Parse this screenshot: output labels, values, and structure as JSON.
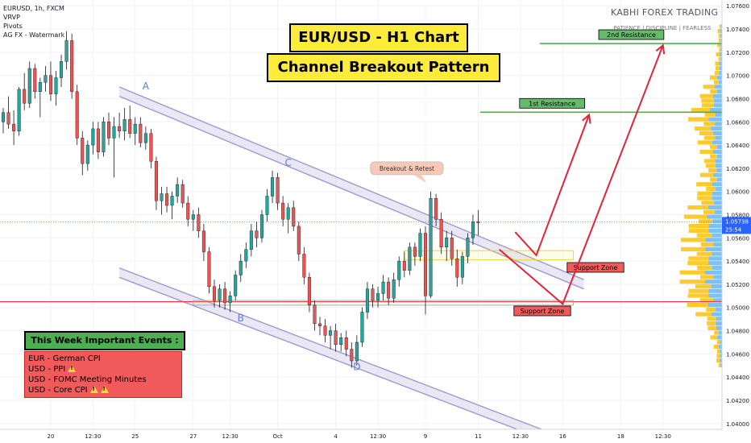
{
  "legend": {
    "symbol": "EURUSD, 1h, FXCM",
    "indicators": [
      "VRVP",
      "Pivots",
      "AG FX - Watermark"
    ]
  },
  "titles": {
    "line1": "EUR/USD - H1 Chart",
    "line2": "Channel Breakout Pattern"
  },
  "brand": {
    "name": "KABHI FOREX TRADING",
    "tagline": "PATIENCE | DISCIPLINE | FEARLESS"
  },
  "events": {
    "title": "This Week Important Events :",
    "items": [
      {
        "text": "EUR - German CPI",
        "warnings": 0
      },
      {
        "text": "USD - PPI",
        "warnings": 1
      },
      {
        "text": "USD - FOMC Meeting Minutes",
        "warnings": 0
      },
      {
        "text": "USD - Core CPI",
        "warnings": 2
      }
    ]
  },
  "colors": {
    "bull": "#26a69a",
    "bear": "#ef5350",
    "candle_wick": "#131722",
    "resistance": "#4caf50",
    "support_line": "#f23645",
    "channel": "#9c8fc9",
    "projection": "#e0243a",
    "support_zone_fill": "#f05a5a",
    "resistance_fill": "#66bb6a",
    "volume_profile_up": "#ffc107",
    "volume_profile_down": "#64b5f6",
    "current_price": "#2962ff"
  },
  "chart_data": {
    "type": "candlestick",
    "symbol": "EURUSD",
    "timeframe": "1h",
    "ylim": [
      1.0395,
      1.0765
    ],
    "y_ticks": [
      "1.07600",
      "1.07400",
      "1.07200",
      "1.07000",
      "1.06800",
      "1.06600",
      "1.06400",
      "1.06200",
      "1.06000",
      "1.05800",
      "1.05600",
      "1.05400",
      "1.05200",
      "1.05000",
      "1.04800",
      "1.04600",
      "1.04400",
      "1.04200",
      "1.04000"
    ],
    "x_ticks": [
      {
        "label": "20",
        "i": 9
      },
      {
        "label": "12:30",
        "i": 17
      },
      {
        "label": "25",
        "i": 25
      },
      {
        "label": "27",
        "i": 36
      },
      {
        "label": "12:30",
        "i": 43
      },
      {
        "label": "Oct",
        "i": 52
      },
      {
        "label": "4",
        "i": 63
      },
      {
        "label": "12:30",
        "i": 71
      },
      {
        "label": "9",
        "i": 80
      },
      {
        "label": "11",
        "i": 90
      },
      {
        "label": "12:30",
        "i": 98
      },
      {
        "label": "16",
        "i": 106
      },
      {
        "label": "18",
        "i": 117
      },
      {
        "label": "12:30",
        "i": 125
      }
    ],
    "ohlc": [
      [
        1.066,
        1.0672,
        1.065,
        1.0668
      ],
      [
        1.0668,
        1.0682,
        1.0654,
        1.0658
      ],
      [
        1.0658,
        1.067,
        1.064,
        1.0652
      ],
      [
        1.0652,
        1.069,
        1.0648,
        1.0688
      ],
      [
        1.0688,
        1.0702,
        1.067,
        1.0676
      ],
      [
        1.0676,
        1.0712,
        1.0672,
        1.0706
      ],
      [
        1.0706,
        1.071,
        1.068,
        1.0686
      ],
      [
        1.0686,
        1.0698,
        1.0664,
        1.0694
      ],
      [
        1.0694,
        1.0708,
        1.0686,
        1.07
      ],
      [
        1.07,
        1.0712,
        1.0678,
        1.0684
      ],
      [
        1.0684,
        1.0704,
        1.0674,
        1.0698
      ],
      [
        1.0698,
        1.0718,
        1.069,
        1.0712
      ],
      [
        1.0712,
        1.0738,
        1.0705,
        1.073
      ],
      [
        1.073,
        1.0736,
        1.068,
        1.0686
      ],
      [
        1.0686,
        1.0692,
        1.064,
        1.0646
      ],
      [
        1.0646,
        1.0652,
        1.0614,
        1.0624
      ],
      [
        1.0624,
        1.0644,
        1.0618,
        1.064
      ],
      [
        1.064,
        1.066,
        1.0632,
        1.0654
      ],
      [
        1.0654,
        1.066,
        1.0628,
        1.0634
      ],
      [
        1.0634,
        1.0664,
        1.063,
        1.066
      ],
      [
        1.066,
        1.0668,
        1.064,
        1.0646
      ],
      [
        1.0646,
        1.0664,
        1.0612,
        1.0656
      ],
      [
        1.0656,
        1.0668,
        1.0646,
        1.0652
      ],
      [
        1.0652,
        1.0672,
        1.0644,
        1.0662
      ],
      [
        1.0662,
        1.0674,
        1.0646,
        1.065
      ],
      [
        1.065,
        1.0664,
        1.064,
        1.0658
      ],
      [
        1.0658,
        1.0664,
        1.0638,
        1.0642
      ],
      [
        1.0642,
        1.0656,
        1.0636,
        1.065
      ],
      [
        1.065,
        1.0654,
        1.062,
        1.0626
      ],
      [
        1.0626,
        1.063,
        1.0584,
        1.0592
      ],
      [
        1.0592,
        1.0604,
        1.058,
        1.0598
      ],
      [
        1.0598,
        1.0604,
        1.0582,
        1.0588
      ],
      [
        1.0588,
        1.06,
        1.0576,
        1.0596
      ],
      [
        1.0596,
        1.0612,
        1.059,
        1.0606
      ],
      [
        1.0606,
        1.061,
        1.0586,
        1.059
      ],
      [
        1.059,
        1.0596,
        1.057,
        1.0576
      ],
      [
        1.0576,
        1.0584,
        1.0566,
        1.058
      ],
      [
        1.058,
        1.0586,
        1.056,
        1.0566
      ],
      [
        1.0566,
        1.0572,
        1.054,
        1.0548
      ],
      [
        1.0548,
        1.0552,
        1.0512,
        1.0518
      ],
      [
        1.0518,
        1.0524,
        1.05,
        1.0506
      ],
      [
        1.0506,
        1.052,
        1.05,
        1.0516
      ],
      [
        1.0516,
        1.0522,
        1.0498,
        1.0504
      ],
      [
        1.0504,
        1.0514,
        1.0496,
        1.051
      ],
      [
        1.051,
        1.0532,
        1.0506,
        1.0528
      ],
      [
        1.0528,
        1.0546,
        1.0522,
        1.054
      ],
      [
        1.054,
        1.0556,
        1.0534,
        1.055
      ],
      [
        1.055,
        1.0572,
        1.0544,
        1.0566
      ],
      [
        1.0566,
        1.0574,
        1.0552,
        1.056
      ],
      [
        1.056,
        1.0584,
        1.0556,
        1.058
      ],
      [
        1.058,
        1.0602,
        1.0574,
        1.0596
      ],
      [
        1.0596,
        1.0618,
        1.059,
        1.0612
      ],
      [
        1.0612,
        1.0616,
        1.0584,
        1.059
      ],
      [
        1.059,
        1.0596,
        1.057,
        1.0576
      ],
      [
        1.0576,
        1.059,
        1.0564,
        1.0586
      ],
      [
        1.0586,
        1.0592,
        1.0566,
        1.057
      ],
      [
        1.057,
        1.0574,
        1.054,
        1.0546
      ],
      [
        1.0546,
        1.0552,
        1.052,
        1.0526
      ],
      [
        1.0526,
        1.053,
        1.0496,
        1.0502
      ],
      [
        1.0502,
        1.0506,
        1.048,
        1.0486
      ],
      [
        1.0486,
        1.0492,
        1.0476,
        1.0484
      ],
      [
        1.0484,
        1.049,
        1.047,
        1.0476
      ],
      [
        1.0476,
        1.0484,
        1.0464,
        1.048
      ],
      [
        1.048,
        1.0486,
        1.0462,
        1.0468
      ],
      [
        1.0468,
        1.0478,
        1.0462,
        1.0474
      ],
      [
        1.0474,
        1.048,
        1.0458,
        1.0464
      ],
      [
        1.0464,
        1.047,
        1.0448,
        1.0454
      ],
      [
        1.0454,
        1.0476,
        1.045,
        1.047
      ],
      [
        1.047,
        1.05,
        1.0466,
        1.0496
      ],
      [
        1.0496,
        1.0522,
        1.049,
        1.0516
      ],
      [
        1.0516,
        1.052,
        1.05,
        1.0506
      ],
      [
        1.0506,
        1.0518,
        1.05,
        1.0512
      ],
      [
        1.0512,
        1.0528,
        1.0506,
        1.0522
      ],
      [
        1.0522,
        1.0526,
        1.0502,
        1.0508
      ],
      [
        1.0508,
        1.053,
        1.0504,
        1.0524
      ],
      [
        1.0524,
        1.0544,
        1.0518,
        1.054
      ],
      [
        1.054,
        1.0548,
        1.0526,
        1.0532
      ],
      [
        1.0532,
        1.0556,
        1.0528,
        1.0552
      ],
      [
        1.0552,
        1.0556,
        1.0536,
        1.0544
      ],
      [
        1.0544,
        1.0568,
        1.054,
        1.0564
      ],
      [
        1.0564,
        1.057,
        1.0494,
        1.051
      ],
      [
        1.051,
        1.06,
        1.0508,
        1.0594
      ],
      [
        1.0594,
        1.0598,
        1.057,
        1.0576
      ],
      [
        1.0576,
        1.0582,
        1.0546,
        1.0552
      ],
      [
        1.0552,
        1.0566,
        1.054,
        1.056
      ],
      [
        1.056,
        1.0566,
        1.0536,
        1.0542
      ],
      [
        1.0542,
        1.055,
        1.0518,
        1.0526
      ],
      [
        1.0526,
        1.0548,
        1.052,
        1.0544
      ],
      [
        1.0544,
        1.0564,
        1.0538,
        1.056
      ],
      [
        1.056,
        1.058,
        1.0554,
        1.0574
      ],
      [
        1.0574,
        1.0584,
        1.0562,
        1.0573
      ]
    ],
    "current_price": {
      "value": 1.05738,
      "label": "1.05738",
      "countdown": "25:54"
    },
    "levels": [
      {
        "name": "1st Resistance",
        "value": 1.06683,
        "label": "1.06683",
        "color": "#4caf50"
      },
      {
        "name": "2nd Resistance",
        "value": 1.07275,
        "label": "1.07275",
        "color": "#4caf50"
      },
      {
        "name": "support",
        "value": 1.0505,
        "color": "#f23645"
      }
    ],
    "zones": [
      {
        "label": "Support Zone",
        "y": [
          1.0541,
          1.0549
        ],
        "i0": 76,
        "i1": 108
      },
      {
        "label": "Support Zone",
        "y": [
          1.0502,
          1.0506
        ],
        "i0": 36,
        "i1": 108
      }
    ],
    "channel": {
      "upper": [
        [
          22,
          1.069
        ],
        [
          110,
          1.0524
        ]
      ],
      "lower": [
        [
          22,
          1.0534
        ],
        [
          102,
          1.0395
        ]
      ],
      "width": 0.0008
    },
    "wave_labels": [
      {
        "label": "A",
        "i": 27,
        "y": 1.0688
      },
      {
        "label": "B",
        "i": 45,
        "y": 1.0488
      },
      {
        "label": "C",
        "i": 54,
        "y": 1.0622
      },
      {
        "label": "D",
        "i": 67,
        "y": 1.0446
      }
    ],
    "annotations": [
      {
        "label": "Breakout & Retest",
        "i": 78,
        "y": 1.062
      }
    ],
    "projections": [
      {
        "points": [
          [
            97,
            1.0565
          ],
          [
            101,
            1.0545
          ],
          [
            111,
            1.0666
          ]
        ]
      },
      {
        "points": [
          [
            94,
            1.055
          ],
          [
            106,
            1.0503
          ],
          [
            125,
            1.0726
          ]
        ]
      }
    ]
  }
}
